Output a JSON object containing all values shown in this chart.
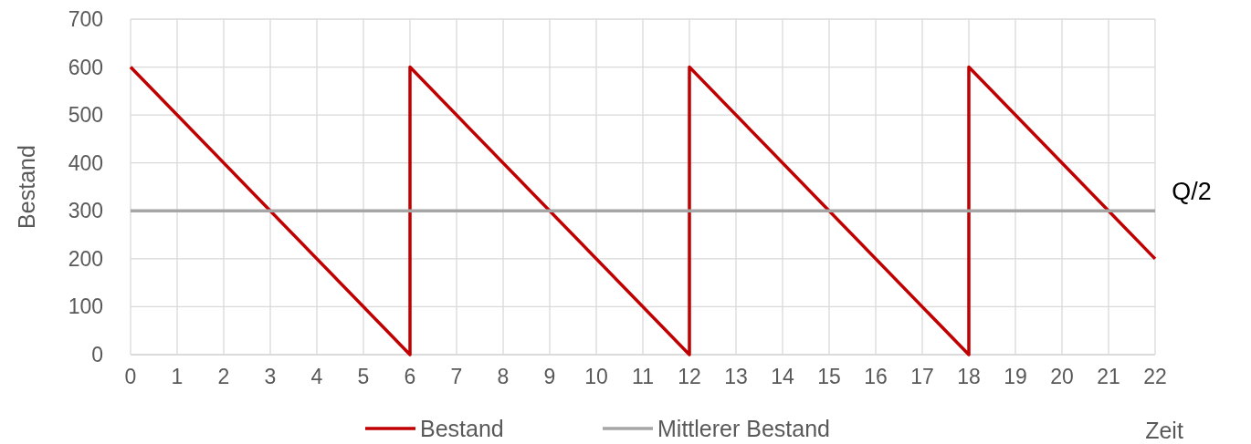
{
  "chart_data": {
    "type": "line",
    "xlabel": "Zeit",
    "ylabel": "Bestand",
    "xlim": [
      0,
      22
    ],
    "xticks": [
      0,
      1,
      2,
      3,
      4,
      5,
      6,
      7,
      8,
      9,
      10,
      11,
      12,
      13,
      14,
      15,
      16,
      17,
      18,
      19,
      20,
      21,
      22
    ],
    "ylim": [
      0,
      700
    ],
    "yticks": [
      0,
      100,
      200,
      300,
      400,
      500,
      600,
      700
    ],
    "series": [
      {
        "name": "Bestand",
        "color": "#c00000",
        "x": [
          0,
          6,
          6,
          12,
          12,
          18,
          18,
          22
        ],
        "values": [
          600,
          0,
          600,
          0,
          600,
          0,
          600,
          200
        ]
      },
      {
        "name": "Mittlerer Bestand",
        "color": "#a6a6a6",
        "x": [
          0,
          22
        ],
        "values": [
          300,
          300
        ]
      }
    ],
    "annotations": [
      {
        "text": "Q/2",
        "x": 22,
        "y": 300
      }
    ],
    "grid": true,
    "legend": "bottom",
    "line_style": "solid"
  }
}
